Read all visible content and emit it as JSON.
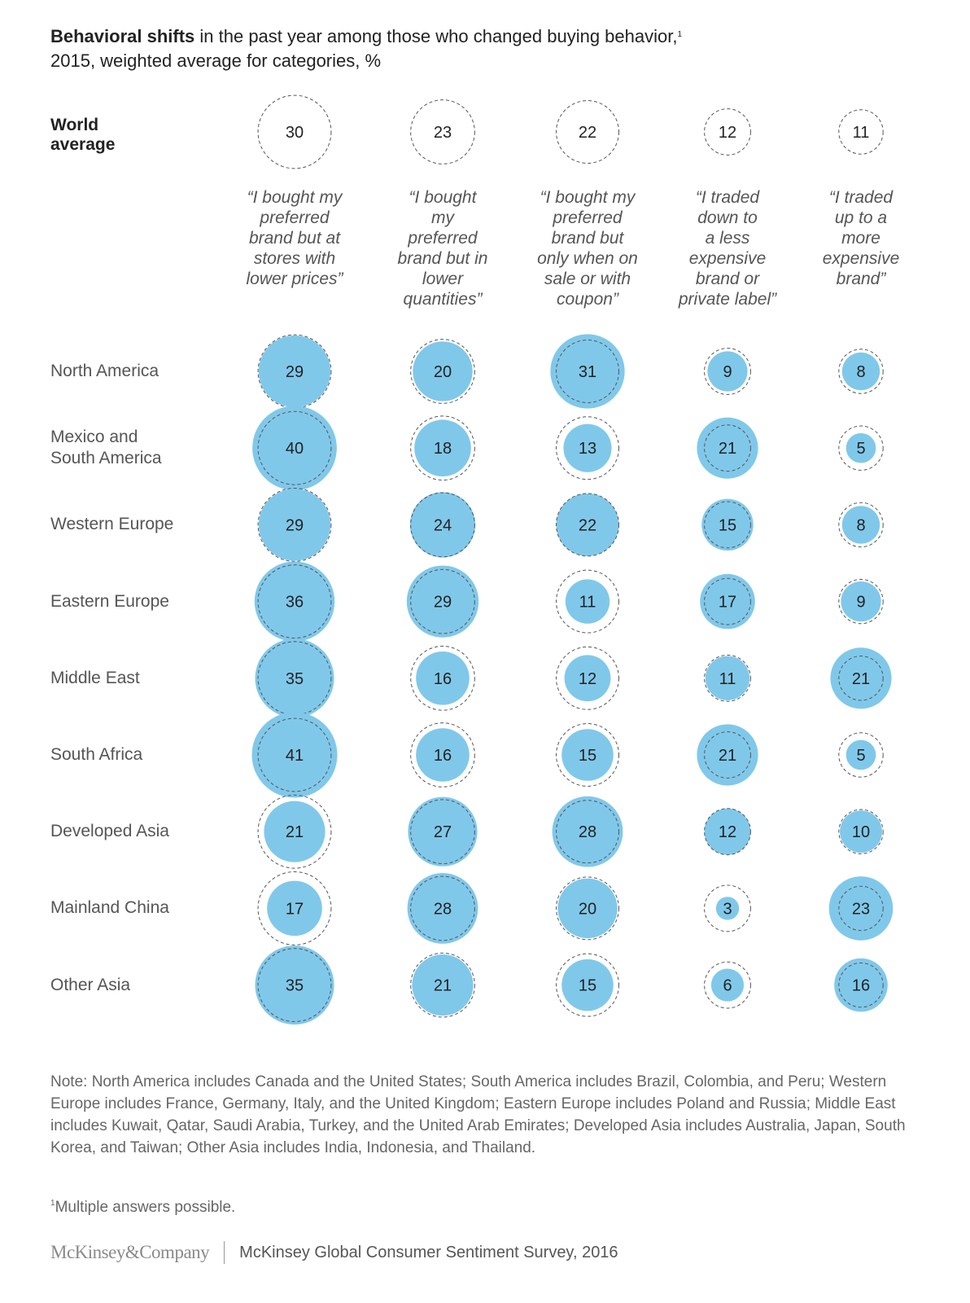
{
  "header": {
    "title_bold": "Behavioral shifts",
    "title_rest": " in the past year among those who changed buying behavior,",
    "title_sup": "1",
    "subtitle": "2015, weighted average for categories, %"
  },
  "world_label": "World average",
  "chart_data": {
    "type": "bubble-matrix",
    "title": "Behavioral shifts in the past year among those who changed buying behavior, 2015, weighted average for categories, %",
    "unit": "%",
    "categories": [
      "“I bought my preferred brand but at stores with lower prices”",
      "“I bought my preferred brand but in lower quantities”",
      "“I bought my preferred brand but only when on sale or with coupon”",
      "“I traded down to a less expensive brand or private label”",
      "“I traded up to a more expensive brand”"
    ],
    "category_lines": [
      [
        "“I bought my",
        "preferred",
        "brand but at",
        "stores with",
        "lower prices”"
      ],
      [
        "“I bought",
        "my",
        "preferred",
        "brand but in",
        "lower",
        "quantities”"
      ],
      [
        "“I bought my",
        "preferred",
        "brand but",
        "only when on",
        "sale or with",
        "coupon”"
      ],
      [
        "“I traded",
        "down to",
        "a less",
        "expensive",
        "brand or",
        "private label”"
      ],
      [
        "“I traded",
        "up to a",
        "more",
        "expensive",
        "brand”"
      ]
    ],
    "world_average": [
      30,
      23,
      22,
      12,
      11
    ],
    "series": [
      {
        "name": "North America",
        "values": [
          29,
          20,
          31,
          9,
          8
        ]
      },
      {
        "name": "Mexico and South America",
        "values": [
          40,
          18,
          13,
          21,
          5
        ]
      },
      {
        "name": "Western Europe",
        "values": [
          29,
          24,
          22,
          15,
          8
        ]
      },
      {
        "name": "Eastern Europe",
        "values": [
          36,
          29,
          11,
          17,
          9
        ]
      },
      {
        "name": "Middle East",
        "values": [
          35,
          16,
          12,
          11,
          21
        ]
      },
      {
        "name": "South Africa",
        "values": [
          41,
          16,
          15,
          21,
          5
        ]
      },
      {
        "name": "Developed Asia",
        "values": [
          21,
          27,
          28,
          12,
          10
        ]
      },
      {
        "name": "Mainland China",
        "values": [
          17,
          28,
          20,
          3,
          23
        ]
      },
      {
        "name": "Other Asia",
        "values": [
          35,
          21,
          15,
          6,
          16
        ]
      }
    ],
    "row_label_lines": {
      "Mexico and South America": [
        "Mexico and",
        "South America"
      ]
    },
    "encoding": "circle area proportional to value; dashed outline shows world average",
    "colors": {
      "bubble_fill": "#80c8ea",
      "outline": "#555555"
    }
  },
  "note": "Note: North America includes Canada and the United States; South America includes Brazil, Colombia, and Peru; Western Europe includes France, Germany, Italy, and the United Kingdom; Eastern Europe includes Poland and Russia; Middle East includes Kuwait, Qatar, Saudi Arabia, Turkey, and the United Arab Emirates; Developed Asia includes Australia, Japan, South Korea, and Taiwan; Other Asia includes India, Indonesia, and Thailand.",
  "footnote": {
    "sup": "1",
    "text": "Multiple answers possible."
  },
  "footer": {
    "logo": "McKinsey&Company",
    "source": "McKinsey Global Consumer Sentiment Survey, 2016"
  }
}
